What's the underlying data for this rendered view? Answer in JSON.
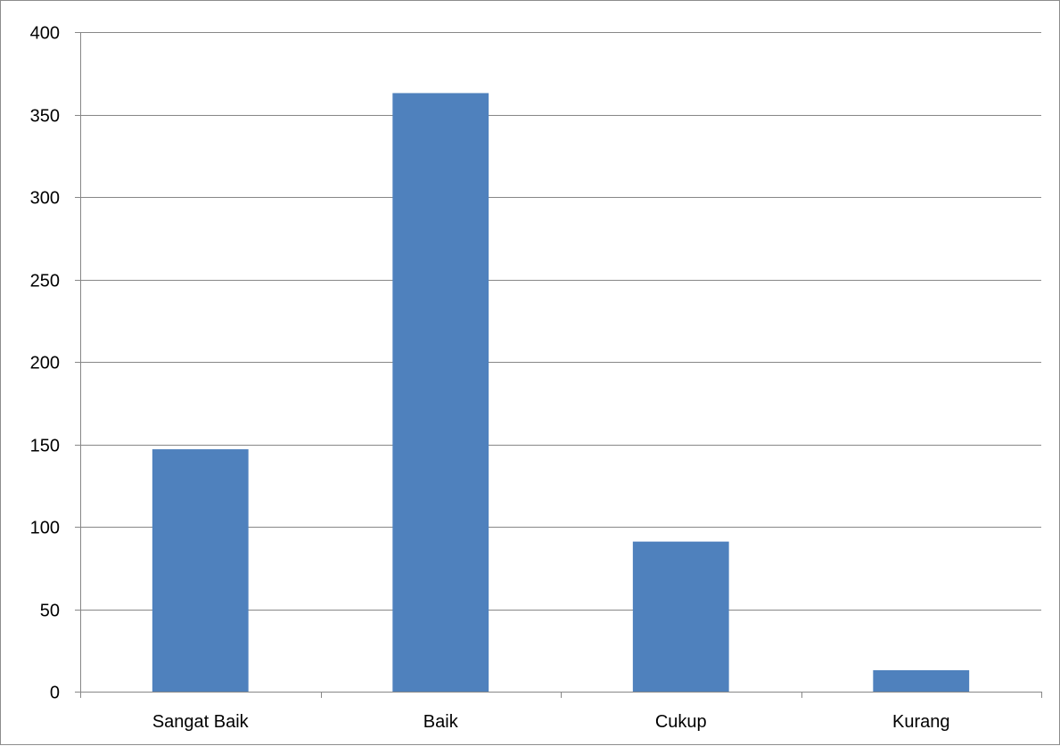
{
  "chart_data": {
    "type": "bar",
    "title": "",
    "xlabel": "",
    "ylabel": "",
    "categories": [
      "Sangat Baik",
      "Baik",
      "Cukup",
      "Kurang"
    ],
    "values": [
      147,
      363,
      91,
      13
    ],
    "ylim": [
      0,
      400
    ],
    "yticks": [
      "0",
      "50",
      "100",
      "150",
      "200",
      "250",
      "300",
      "350",
      "400"
    ],
    "grid": true,
    "legend": "none",
    "bar_color": "#4f81bd",
    "grid_color": "#878787"
  }
}
